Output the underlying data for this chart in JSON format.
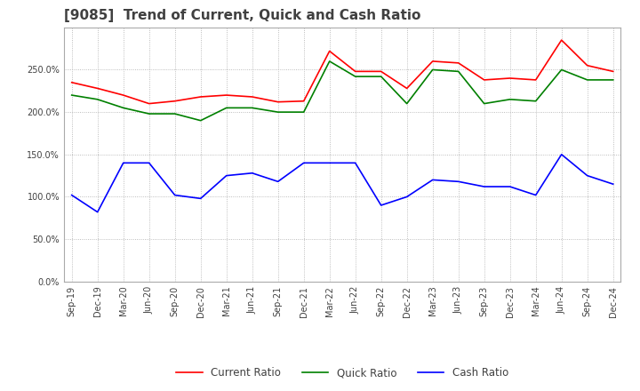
{
  "title": "[9085]  Trend of Current, Quick and Cash Ratio",
  "x_labels": [
    "Sep-19",
    "Dec-19",
    "Mar-20",
    "Jun-20",
    "Sep-20",
    "Dec-20",
    "Mar-21",
    "Jun-21",
    "Sep-21",
    "Dec-21",
    "Mar-22",
    "Jun-22",
    "Sep-22",
    "Dec-22",
    "Mar-23",
    "Jun-23",
    "Sep-23",
    "Dec-23",
    "Mar-24",
    "Jun-24",
    "Sep-24",
    "Dec-24"
  ],
  "current_ratio": [
    235,
    228,
    220,
    210,
    213,
    218,
    220,
    218,
    212,
    213,
    272,
    248,
    248,
    228,
    260,
    258,
    238,
    240,
    238,
    285,
    255,
    248
  ],
  "quick_ratio": [
    220,
    215,
    205,
    198,
    198,
    190,
    205,
    205,
    200,
    200,
    260,
    242,
    242,
    210,
    250,
    248,
    210,
    215,
    213,
    250,
    238,
    238
  ],
  "cash_ratio": [
    102,
    82,
    140,
    140,
    102,
    98,
    125,
    128,
    118,
    140,
    140,
    140,
    90,
    100,
    120,
    118,
    112,
    112,
    102,
    150,
    125,
    115
  ],
  "ylim": [
    0,
    300
  ],
  "yticks": [
    0,
    50,
    100,
    150,
    200,
    250
  ],
  "current_color": "#ff0000",
  "quick_color": "#008000",
  "cash_color": "#0000ff",
  "background_color": "#ffffff",
  "grid_color": "#aaaaaa",
  "title_color": "#404040",
  "title_fontsize": 11,
  "legend_fontsize": 8.5,
  "tick_fontsize": 7
}
